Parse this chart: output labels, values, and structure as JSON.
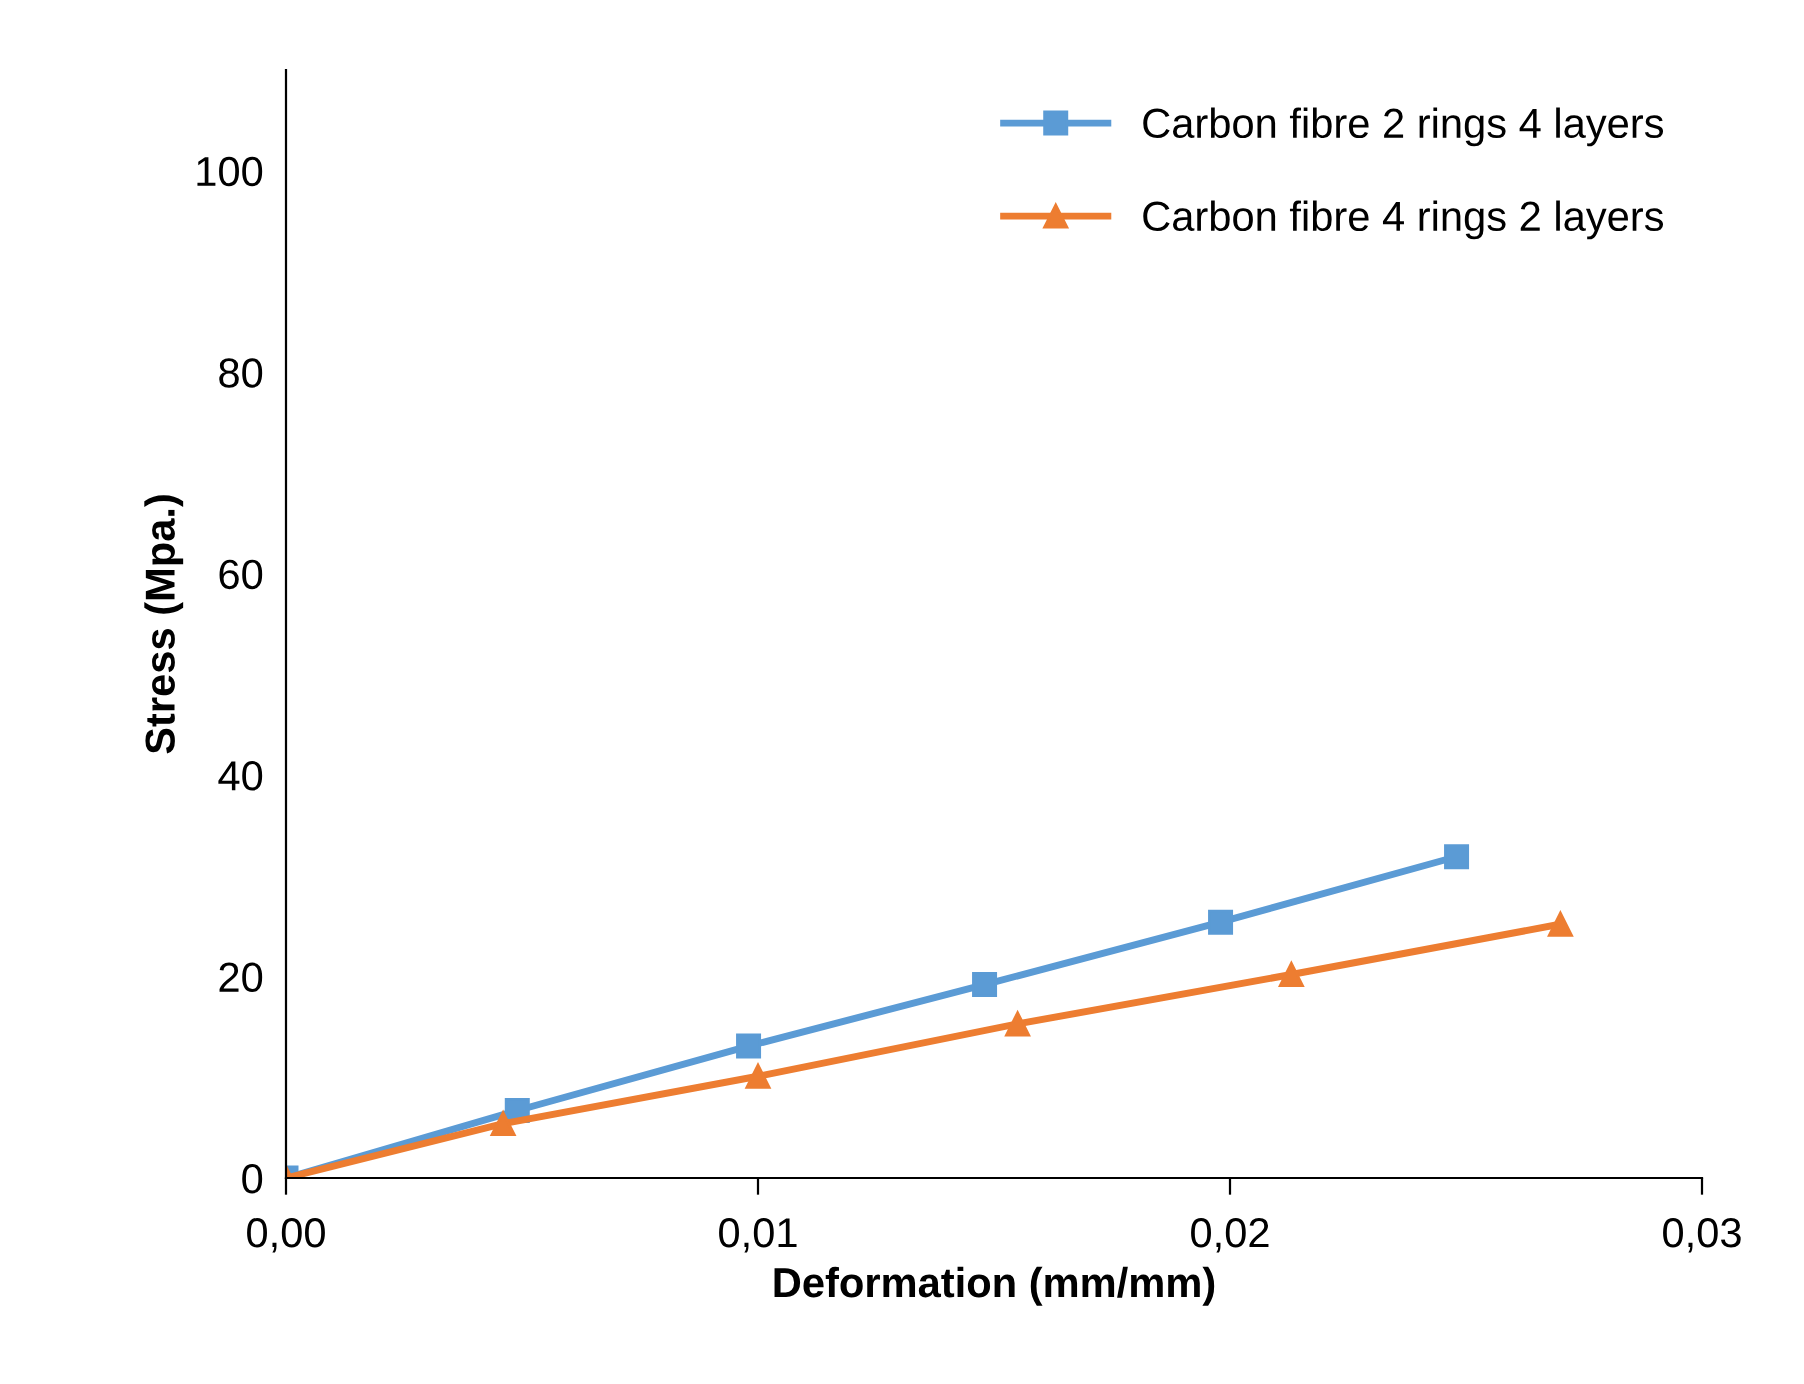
{
  "chart_data": {
    "type": "line",
    "xlabel": "Deformation (mm/mm)",
    "ylabel": "Stress (Mpa.)",
    "series": [
      {
        "name": "Carbon fibre 2 rings 4 layers",
        "color": "#5b9bd5",
        "marker": "square",
        "x": [
          0,
          0.0049,
          0.0098,
          0.0148,
          0.0198,
          0.0248
        ],
        "values": [
          0,
          6.7,
          13.1,
          19.2,
          25.4,
          31.9
        ]
      },
      {
        "name": "Carbon fibre 4 rings 2 layers",
        "color": "#ed7d31",
        "marker": "triangle",
        "x": [
          0,
          0.0046,
          0.01,
          0.0155,
          0.0213,
          0.027
        ],
        "values": [
          0,
          5.4,
          10.1,
          15.3,
          20.2,
          25.2
        ]
      }
    ],
    "xlim": [
      0,
      0.03
    ],
    "xticks": [
      {
        "value": 0,
        "label": "0,00"
      },
      {
        "value": 0.01,
        "label": "0,01"
      },
      {
        "value": 0.02,
        "label": "0,02"
      },
      {
        "value": 0.03,
        "label": "0,03"
      }
    ],
    "ylim": [
      0,
      110
    ],
    "yticks": [
      0,
      20,
      40,
      60,
      80,
      100
    ],
    "grid": false,
    "legend": "top right",
    "line_style": "solid"
  }
}
